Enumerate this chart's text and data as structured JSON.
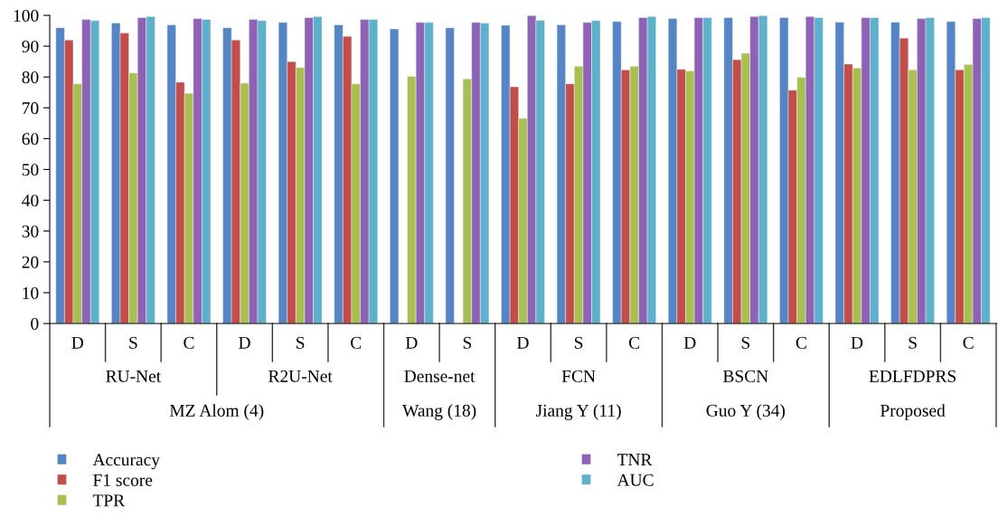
{
  "chart_data": {
    "type": "bar",
    "categories": [
      "D",
      "S",
      "C",
      "D",
      "S",
      "C",
      "D",
      "S",
      "D",
      "S",
      "C",
      "D",
      "S",
      "C",
      "D",
      "S",
      "C"
    ],
    "series": [
      {
        "name": "Accuracy",
        "color": "#5585c5",
        "values": [
          96,
          97.5,
          96.9,
          96,
          97.7,
          96.9,
          95.6,
          96,
          96.8,
          96.9,
          98,
          99,
          99.3,
          99.3,
          97.8,
          97.8,
          98
        ]
      },
      {
        "name": "F1 score",
        "color": "#c24d4a",
        "values": [
          92,
          94.3,
          78.3,
          92,
          85,
          93.2,
          null,
          null,
          76.8,
          77.8,
          82.3,
          82.5,
          85.6,
          75.7,
          84.2,
          92.6,
          82.3
        ]
      },
      {
        "name": "TPR",
        "color": "#a8c052",
        "values": [
          77.8,
          81.3,
          74.7,
          78,
          83.1,
          77.8,
          80.2,
          79.4,
          66.6,
          83.5,
          83.5,
          82,
          87.7,
          79.9,
          82.9,
          82.3,
          84.1
        ]
      },
      {
        "name": "TNR",
        "color": "#8e62b4",
        "values": [
          98.7,
          99.3,
          99,
          98.7,
          99.3,
          98.7,
          97.7,
          97.7,
          99.9,
          97.7,
          99.3,
          99.3,
          99.6,
          99.6,
          99.3,
          99,
          99
        ]
      },
      {
        "name": "AUC",
        "color": "#5fb1cb",
        "values": [
          98.3,
          99.6,
          98.7,
          98.3,
          99.6,
          98.7,
          97.7,
          97.5,
          98.4,
          98.3,
          99.6,
          99.3,
          99.9,
          99.3,
          99.3,
          99.3,
          99.3
        ]
      }
    ],
    "annotations": [
      "RU-Net",
      "R2U-Net",
      "Dense-net",
      "FCN",
      "BSCN",
      "EDLFDPRS",
      "MZ Alom (4)",
      "Wang (18)",
      "Jiang Y (11)",
      "Guo Y (34)",
      "Proposed"
    ],
    "ylim": [
      0,
      100
    ],
    "yticks": [
      0,
      10,
      20,
      30,
      40,
      50,
      60,
      70,
      80,
      90,
      100
    ],
    "grid": false,
    "legend": "bottom"
  }
}
